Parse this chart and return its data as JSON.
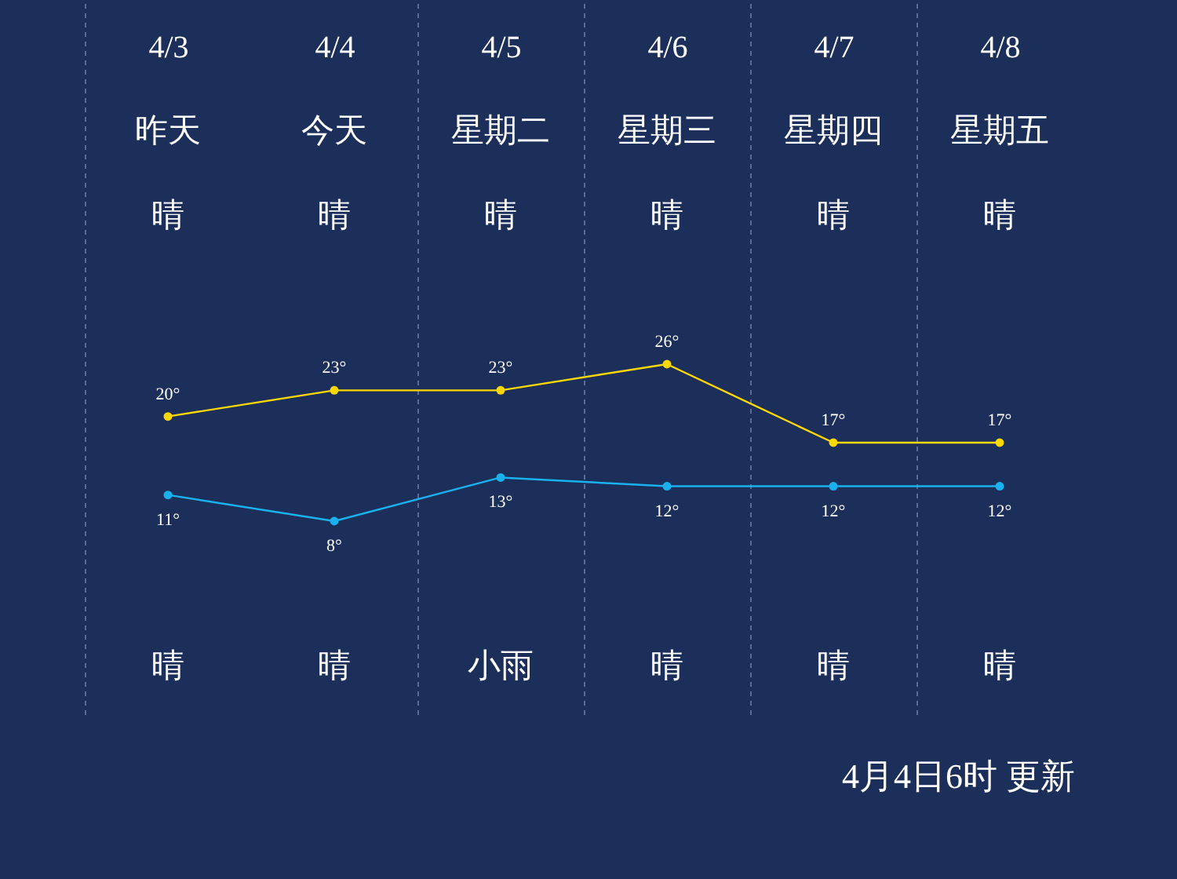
{
  "chart_data": {
    "type": "line",
    "categories": [
      "4/3",
      "4/4",
      "4/5",
      "4/6",
      "4/7",
      "4/8"
    ],
    "series": [
      {
        "color": "#ffd800",
        "values": [
          20,
          23,
          23,
          26,
          17,
          17
        ],
        "value_labels": [
          "20°",
          "23°",
          "23°",
          "26°",
          "17°",
          "17°"
        ]
      },
      {
        "color": "#1ab2ee",
        "values": [
          11,
          8,
          13,
          12,
          12,
          12
        ],
        "value_labels": [
          "11°",
          "8°",
          "13°",
          "12°",
          "12°",
          "12°"
        ]
      }
    ],
    "marker": "circle",
    "line_style": "solid",
    "grid": "x",
    "legend": false,
    "annotations": [
      "昨天",
      "今天",
      "星期二",
      "星期三",
      "星期四",
      "星期五",
      "晴",
      "晴",
      "晴",
      "晴",
      "晴",
      "晴",
      "晴",
      "晴",
      "小雨",
      "晴",
      "晴",
      "晴",
      "4月4日6时 更新"
    ]
  }
}
